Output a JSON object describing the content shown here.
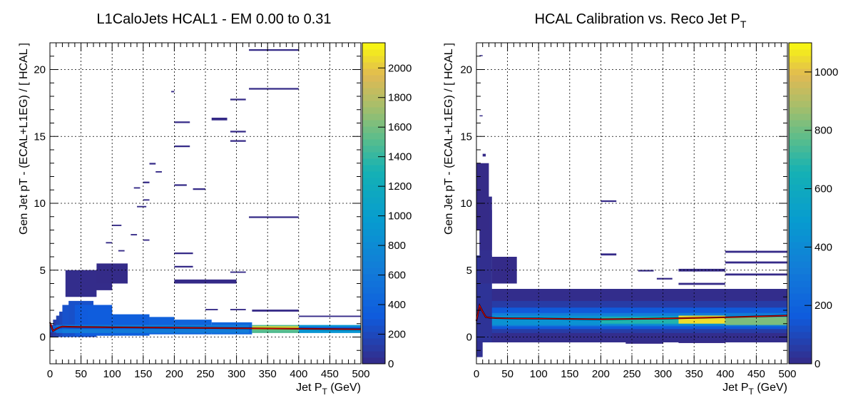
{
  "chart_data": [
    {
      "type": "heatmap",
      "title": "L1CaloJets HCAL1 - EM 0.00 to 0.31",
      "xlabel_main": "Jet P",
      "xlabel_sub": "T",
      "xlabel_unit": " (GeV)",
      "ylabel": "Gen Jet pT - (ECAL+L1EG) / [ HCAL ]",
      "xlim": [
        0,
        500
      ],
      "ylim": [
        -2,
        22
      ],
      "xticks": [
        0,
        50,
        100,
        150,
        200,
        250,
        300,
        350,
        400,
        450,
        500
      ],
      "yticks": [
        0,
        5,
        10,
        15,
        20
      ],
      "zlim": [
        0,
        2170
      ],
      "zticks": [
        0,
        200,
        400,
        600,
        800,
        1000,
        1200,
        1400,
        1600,
        1800,
        2000
      ],
      "grid": true,
      "cells": [
        [
          0,
          0.0,
          60,
          0.9,
          60
        ],
        [
          5,
          0.0,
          60,
          1.3,
          120
        ],
        [
          10,
          0.0,
          60,
          1.6,
          160
        ],
        [
          15,
          0.0,
          60,
          1.9,
          200
        ],
        [
          20,
          0.0,
          40,
          2.4,
          260
        ],
        [
          30,
          0.1,
          40,
          2.6,
          250
        ],
        [
          40,
          0.1,
          60,
          2.3,
          320
        ],
        [
          60,
          0.1,
          40,
          2.0,
          340
        ],
        [
          100,
          0.1,
          60,
          1.6,
          360
        ],
        [
          160,
          0.2,
          40,
          1.3,
          380
        ],
        [
          200,
          0.2,
          60,
          1.1,
          400
        ],
        [
          260,
          0.2,
          65,
          0.9,
          420
        ],
        [
          0,
          0.35,
          60,
          0.45,
          320
        ],
        [
          5,
          0.35,
          60,
          0.5,
          480
        ],
        [
          10,
          0.3,
          100,
          0.6,
          560
        ],
        [
          20,
          0.3,
          300,
          0.6,
          640
        ],
        [
          325,
          0.3,
          75,
          0.6,
          1500
        ],
        [
          400,
          0.3,
          100,
          0.6,
          900
        ],
        [
          0,
          0.6,
          500,
          0.15,
          300
        ],
        [
          325,
          0.55,
          75,
          0.25,
          2050
        ],
        [
          25,
          3.0,
          50,
          2.0,
          20
        ],
        [
          50,
          3.5,
          50,
          1.5,
          10
        ],
        [
          75,
          4.0,
          50,
          1.5,
          5
        ],
        [
          200,
          4.0,
          100,
          0.3,
          2
        ],
        [
          325,
          1.9,
          75,
          0.15,
          1
        ],
        [
          400,
          1.5,
          100,
          0.1,
          1
        ],
        [
          320,
          21.4,
          80,
          0.12,
          1
        ],
        [
          320,
          18.5,
          80,
          0.12,
          1
        ],
        [
          320,
          8.9,
          80,
          0.12,
          1
        ],
        [
          290,
          17.7,
          25,
          0.12,
          1
        ],
        [
          290,
          15.3,
          25,
          0.12,
          1
        ],
        [
          290,
          14.6,
          25,
          0.12,
          1
        ],
        [
          260,
          16.2,
          25,
          0.2,
          1
        ],
        [
          200,
          16.0,
          25,
          0.12,
          1
        ],
        [
          200,
          14.2,
          25,
          0.12,
          1
        ],
        [
          195,
          18.3,
          5,
          0.1,
          1
        ],
        [
          200,
          11.3,
          20,
          0.12,
          1
        ],
        [
          230,
          11.0,
          20,
          0.12,
          1
        ],
        [
          150,
          11.5,
          10,
          0.12,
          1
        ],
        [
          160,
          12.9,
          10,
          0.12,
          1
        ],
        [
          170,
          12.3,
          10,
          0.1,
          1
        ],
        [
          135,
          11.1,
          10,
          0.1,
          1
        ],
        [
          140,
          9.7,
          15,
          0.1,
          1
        ],
        [
          150,
          10.2,
          10,
          0.1,
          1
        ],
        [
          200,
          6.2,
          30,
          0.12,
          1
        ],
        [
          200,
          5.2,
          30,
          0.12,
          1
        ],
        [
          200,
          4.0,
          30,
          0.1,
          1
        ],
        [
          290,
          4.8,
          25,
          0.1,
          1
        ],
        [
          250,
          2.0,
          20,
          0.1,
          1
        ],
        [
          290,
          2.0,
          25,
          0.1,
          1
        ],
        [
          100,
          8.3,
          15,
          0.1,
          1
        ],
        [
          90,
          7.0,
          10,
          0.1,
          1
        ],
        [
          110,
          6.4,
          10,
          0.1,
          1
        ],
        [
          130,
          7.6,
          10,
          0.1,
          1
        ],
        [
          150,
          7.2,
          10,
          0.1,
          1
        ]
      ],
      "profile_x": [
        0,
        5,
        10,
        15,
        20,
        30,
        50,
        100,
        200,
        300,
        400,
        500
      ],
      "profile_y": [
        1.1,
        0.45,
        0.6,
        0.72,
        0.78,
        0.77,
        0.75,
        0.73,
        0.7,
        0.66,
        0.62,
        0.58
      ]
    },
    {
      "type": "heatmap",
      "title": "HCAL Calibration vs. Reco Jet P",
      "title_sub": "T",
      "xlabel_main": "Jet P",
      "xlabel_sub": "T",
      "xlabel_unit": " (GeV)",
      "ylabel": "Gen Jet pT - (ECAL+L1EG) / [ HCAL ]",
      "xlim": [
        0,
        500
      ],
      "ylim": [
        -2,
        22
      ],
      "xticks": [
        0,
        50,
        100,
        150,
        200,
        250,
        300,
        350,
        400,
        450,
        500
      ],
      "yticks": [
        0,
        5,
        10,
        15,
        20
      ],
      "zlim": [
        0,
        1100
      ],
      "zticks": [
        0,
        200,
        400,
        600,
        800,
        1000
      ],
      "grid": true,
      "cells": [
        [
          0,
          -0.4,
          500,
          4.0,
          10
        ],
        [
          0,
          0.3,
          500,
          2.4,
          60
        ],
        [
          0,
          0.6,
          500,
          1.6,
          160
        ],
        [
          0,
          0.8,
          500,
          1.0,
          320
        ],
        [
          0,
          0.9,
          500,
          0.7,
          440
        ],
        [
          200,
          1.0,
          125,
          0.5,
          680
        ],
        [
          325,
          1.0,
          75,
          0.6,
          1050
        ],
        [
          400,
          0.9,
          100,
          0.6,
          820
        ],
        [
          0,
          -0.4,
          25,
          6.5,
          30
        ],
        [
          5,
          4.0,
          20,
          5.5,
          15
        ],
        [
          5,
          6.5,
          20,
          4.0,
          5
        ],
        [
          0,
          8.0,
          20,
          5.0,
          2
        ],
        [
          25,
          4.0,
          40,
          2.0,
          3
        ],
        [
          200,
          10.1,
          25,
          0.12,
          1
        ],
        [
          325,
          4.9,
          75,
          0.2,
          1
        ],
        [
          400,
          6.3,
          100,
          0.15,
          1
        ],
        [
          400,
          5.5,
          100,
          0.15,
          1
        ],
        [
          400,
          4.6,
          100,
          0.15,
          1
        ],
        [
          325,
          3.9,
          75,
          0.15,
          1
        ],
        [
          200,
          6.1,
          25,
          0.15,
          1
        ],
        [
          260,
          4.9,
          25,
          0.12,
          1
        ],
        [
          290,
          4.3,
          25,
          0.12,
          1
        ],
        [
          240,
          -0.5,
          60,
          0.12,
          1
        ],
        [
          325,
          -0.45,
          75,
          0.1,
          1
        ],
        [
          0,
          -1.5,
          10,
          1.2,
          20
        ],
        [
          5,
          21.0,
          5,
          0.08,
          1
        ],
        [
          5,
          16.5,
          5,
          0.08,
          1
        ],
        [
          10,
          13.5,
          5,
          0.2,
          1
        ]
      ],
      "profile_x": [
        0,
        5,
        10,
        15,
        20,
        30,
        50,
        100,
        200,
        300,
        400,
        500
      ],
      "profile_y": [
        1.2,
        2.35,
        1.9,
        1.5,
        1.45,
        1.42,
        1.4,
        1.38,
        1.33,
        1.38,
        1.48,
        1.6
      ]
    }
  ]
}
